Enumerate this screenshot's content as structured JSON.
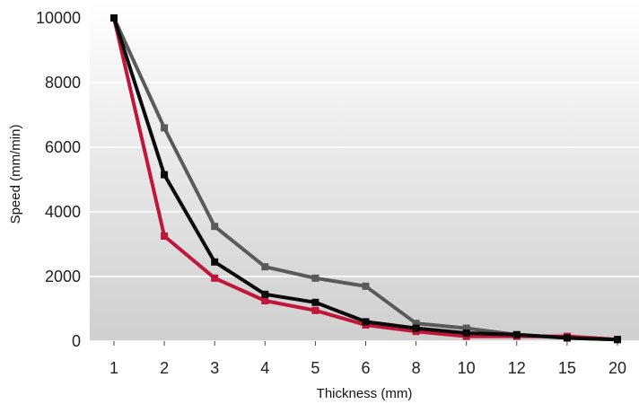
{
  "chart_data": {
    "type": "line",
    "title": "",
    "xlabel": "Thickness (mm)",
    "ylabel": "Speed (mm/min)",
    "categories": [
      "1",
      "2",
      "3",
      "4",
      "5",
      "6",
      "8",
      "10",
      "12",
      "15",
      "20"
    ],
    "y_ticks": [
      "0",
      "2000",
      "4000",
      "6000",
      "8000",
      "10000"
    ],
    "ylim": [
      0,
      10000
    ],
    "grid": "horizontal",
    "legend": "none",
    "background": "gradient-gray",
    "series": [
      {
        "color": "#5a5a5a",
        "values": [
          10000,
          6600,
          3550,
          2300,
          1950,
          1700,
          550,
          400,
          200,
          100,
          50
        ]
      },
      {
        "color": "#c0163a",
        "values": [
          10000,
          3250,
          1950,
          1250,
          950,
          500,
          300,
          150,
          150,
          150,
          50
        ]
      },
      {
        "color": "#0a0a0a",
        "values": [
          10000,
          5150,
          2450,
          1450,
          1200,
          600,
          400,
          250,
          200,
          100,
          50
        ]
      }
    ]
  }
}
